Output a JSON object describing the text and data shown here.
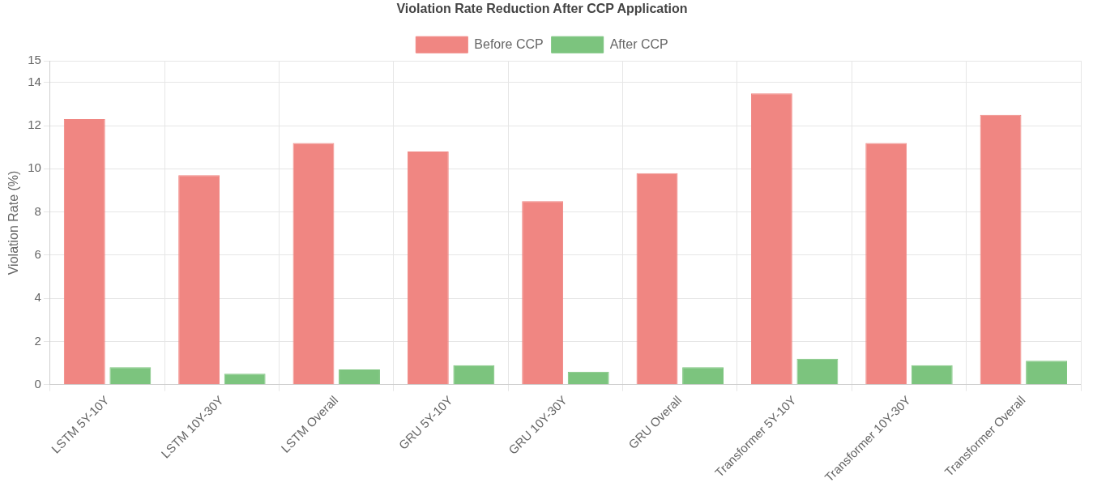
{
  "chart_data": {
    "type": "bar",
    "title": "Violation Rate Reduction After CCP Application",
    "ylabel": "Violation Rate (%)",
    "categories": [
      "LSTM 5Y-10Y",
      "LSTM 10Y-30Y",
      "LSTM Overall",
      "GRU 5Y-10Y",
      "GRU 10Y-30Y",
      "GRU Overall",
      "Transformer 5Y-10Y",
      "Transformer 10Y-30Y",
      "Transformer Overall"
    ],
    "series": [
      {
        "name": "Before CCP",
        "color": "#f08682",
        "values": [
          12.3,
          9.7,
          11.2,
          10.8,
          8.5,
          9.8,
          13.5,
          11.2,
          12.5
        ]
      },
      {
        "name": "After CCP",
        "color": "#7cc47e",
        "values": [
          0.8,
          0.5,
          0.7,
          0.9,
          0.6,
          0.8,
          1.2,
          0.9,
          1.1
        ]
      }
    ],
    "ylim": [
      0,
      15
    ],
    "yticks": [
      0,
      2,
      4,
      6,
      8,
      10,
      12,
      14,
      15
    ],
    "grid": true,
    "legend": "top"
  }
}
